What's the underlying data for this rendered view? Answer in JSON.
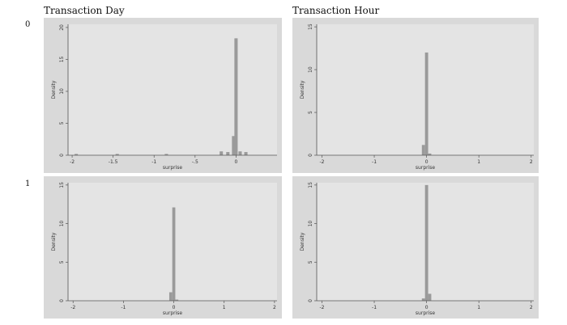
{
  "column_titles": [
    "Transaction Day",
    "Transaction Hour"
  ],
  "row_labels": [
    "0",
    "1"
  ],
  "colors": {
    "panel_bg": "#d9d9d9",
    "plot_bg": "#e4e4e4",
    "bar": "#9a9a9a",
    "axis": "#555555"
  },
  "chart_data": [
    {
      "type": "bar",
      "panel": "Transaction Day, 0",
      "xlabel": "surprise",
      "ylabel": "Density",
      "xlim": [
        -2.05,
        0.5
      ],
      "ylim": [
        0,
        20.5
      ],
      "xticks": [
        -2,
        -1.5,
        -1,
        -0.5,
        0
      ],
      "xtick_labels": [
        "-2",
        "-1.5",
        "-1",
        "-.5",
        "0"
      ],
      "yticks": [
        0,
        5,
        10,
        15,
        20
      ],
      "bar_width": 0.04,
      "bins": [
        {
          "x": -1.95,
          "y": 0.2
        },
        {
          "x": -1.45,
          "y": 0.2
        },
        {
          "x": -0.85,
          "y": 0.2
        },
        {
          "x": -0.18,
          "y": 0.6
        },
        {
          "x": -0.1,
          "y": 0.5
        },
        {
          "x": -0.03,
          "y": 3.0
        },
        {
          "x": 0.0,
          "y": 18.3
        },
        {
          "x": 0.05,
          "y": 0.6
        },
        {
          "x": 0.12,
          "y": 0.5
        }
      ]
    },
    {
      "type": "bar",
      "panel": "Transaction Hour, 0",
      "xlabel": "surprise",
      "ylabel": "Density",
      "xlim": [
        -2.1,
        2.05
      ],
      "ylim": [
        0,
        15.3
      ],
      "xticks": [
        -2,
        -1,
        0,
        1,
        2
      ],
      "xtick_labels": [
        "-2",
        "-1",
        "0",
        "1",
        "2"
      ],
      "yticks": [
        0,
        5,
        10,
        15
      ],
      "bar_width": 0.06,
      "bins": [
        {
          "x": -0.06,
          "y": 1.2
        },
        {
          "x": 0.0,
          "y": 12.0
        },
        {
          "x": 0.06,
          "y": 0.2
        }
      ]
    },
    {
      "type": "bar",
      "panel": "Transaction Day, 1",
      "xlabel": "surprise",
      "ylabel": "Density",
      "xlim": [
        -2.1,
        2.05
      ],
      "ylim": [
        0,
        15.3
      ],
      "xticks": [
        -2,
        -1,
        0,
        1,
        2
      ],
      "xtick_labels": [
        "-2",
        "-1",
        "0",
        "1",
        "2"
      ],
      "yticks": [
        0,
        5,
        10,
        15
      ],
      "bar_width": 0.06,
      "bins": [
        {
          "x": -0.06,
          "y": 1.1
        },
        {
          "x": 0.0,
          "y": 12.1
        },
        {
          "x": 0.06,
          "y": 0.15
        }
      ]
    },
    {
      "type": "bar",
      "panel": "Transaction Hour, 1",
      "xlabel": "surprise",
      "ylabel": "Density",
      "xlim": [
        -2.1,
        2.05
      ],
      "ylim": [
        0,
        15.3
      ],
      "xticks": [
        -2,
        -1,
        0,
        1,
        2
      ],
      "xtick_labels": [
        "-2",
        "-1",
        "0",
        "1",
        "2"
      ],
      "yticks": [
        0,
        5,
        10,
        15
      ],
      "bar_width": 0.06,
      "bins": [
        {
          "x": -0.06,
          "y": 0.3
        },
        {
          "x": 0.0,
          "y": 15.0
        },
        {
          "x": 0.06,
          "y": 0.9
        }
      ]
    }
  ]
}
